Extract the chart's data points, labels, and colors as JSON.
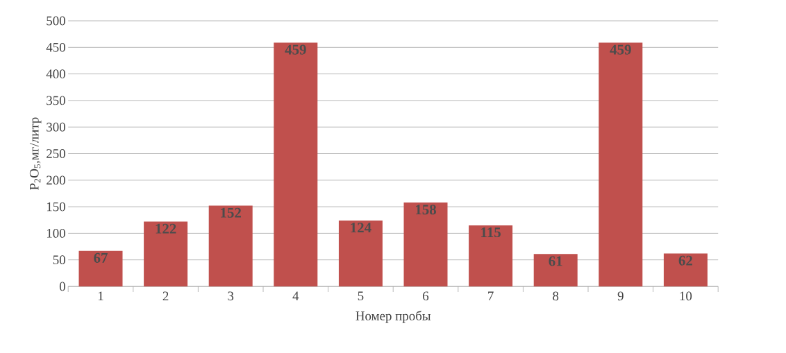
{
  "chart_data": {
    "type": "bar",
    "xlabel": "Номер пробы",
    "ylabel": "P$_{2}$O$_{5}$,мг/литр",
    "categories": [
      "1",
      "2",
      "3",
      "4",
      "5",
      "6",
      "7",
      "8",
      "9",
      "10"
    ],
    "values": [
      67,
      122,
      152,
      459,
      124,
      158,
      115,
      61,
      459,
      62
    ],
    "color": "#c0504d",
    "data_labels": true,
    "grid": "y",
    "ylim": [
      0,
      500
    ],
    "yticks": [
      0,
      50,
      100,
      150,
      200,
      250,
      300,
      350,
      400,
      450,
      500
    ]
  }
}
